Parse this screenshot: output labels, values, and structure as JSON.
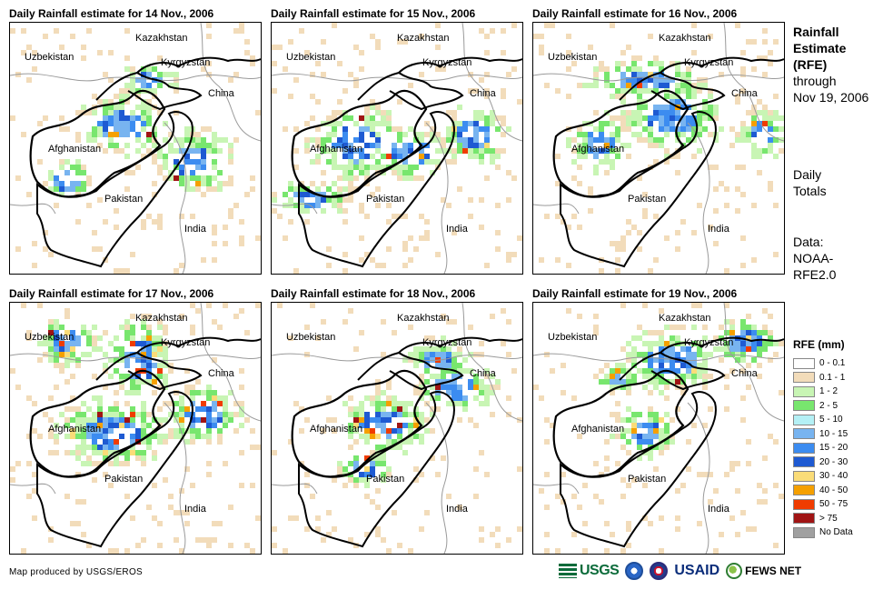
{
  "panels": [
    {
      "title": "Daily Rainfall estimate for 14 Nov., 2006"
    },
    {
      "title": "Daily Rainfall estimate for 15 Nov., 2006"
    },
    {
      "title": "Daily Rainfall estimate for 16 Nov., 2006"
    },
    {
      "title": "Daily Rainfall estimate for 17 Nov., 2006"
    },
    {
      "title": "Daily Rainfall estimate for 18 Nov., 2006"
    },
    {
      "title": "Daily Rainfall estimate for 19 Nov., 2006"
    }
  ],
  "map_labels": {
    "kazakhstan": "Kazakhstan",
    "uzbekistan": "Uzbekistan",
    "kyrgyzstan": "Kyrgyzstan",
    "china": "China",
    "afghanistan": "Afghanistan",
    "pakistan": "Pakistan",
    "india": "India"
  },
  "side": {
    "title_bold_1": "Rainfall",
    "title_bold_2": "Estimate",
    "title_bold_3": "(RFE)",
    "title_line_4": "through",
    "title_line_5": "Nov 19, 2006",
    "daily_1": "Daily",
    "daily_2": "Totals",
    "data_1": "Data:",
    "data_2": "NOAA-",
    "data_3": "RFE2.0"
  },
  "legend": {
    "title": "RFE (mm)",
    "items": [
      {
        "label": "0 - 0.1",
        "color": "#ffffff"
      },
      {
        "label": "0.1 - 1",
        "color": "#f2dcba"
      },
      {
        "label": "1 - 2",
        "color": "#c8f5b4"
      },
      {
        "label": "2 - 5",
        "color": "#78e66e"
      },
      {
        "label": "5 - 10",
        "color": "#b4f0f5"
      },
      {
        "label": "10 - 15",
        "color": "#78b4f0"
      },
      {
        "label": "15 - 20",
        "color": "#3c8cf0"
      },
      {
        "label": "20 - 30",
        "color": "#1e5ad2"
      },
      {
        "label": "30 - 40",
        "color": "#fadc78"
      },
      {
        "label": "40 - 50",
        "color": "#f5a000"
      },
      {
        "label": "50 - 75",
        "color": "#f03c00"
      },
      {
        "label": "> 75",
        "color": "#a01414"
      },
      {
        "label": "No Data",
        "color": "#a0a0a0"
      }
    ]
  },
  "footer": {
    "credit": "Map produced by USGS/EROS",
    "logo_usgs": "USGS",
    "logo_usaid": "USAID",
    "logo_fews": "FEWS NET"
  }
}
